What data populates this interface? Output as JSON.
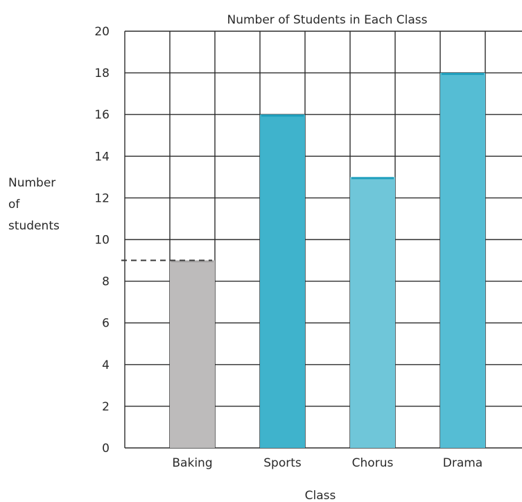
{
  "chart_data": {
    "type": "bar",
    "title": "Number of Students in Each Class",
    "xlabel": "Class",
    "ylabel": [
      "Number",
      "of",
      "students"
    ],
    "categories": [
      "Baking",
      "Sports",
      "Chorus",
      "Drama"
    ],
    "values": [
      9,
      16,
      13,
      18
    ],
    "ylim": [
      0,
      20
    ],
    "yticks": [
      0,
      2,
      4,
      6,
      8,
      10,
      12,
      14,
      16,
      18,
      20
    ],
    "grid": true,
    "colors": {
      "Baking": "#bdbbbb",
      "Sports": "#3fb3cc",
      "Chorus": "#6fc6d9",
      "Drama": "#55bdd4",
      "grid": "#2b2b2b",
      "text": "#2a2a2a"
    },
    "reference_line": {
      "value": 9,
      "style": "dashed"
    }
  }
}
